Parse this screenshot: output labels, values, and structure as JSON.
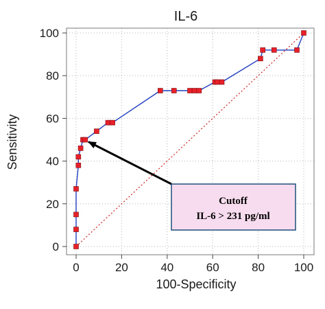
{
  "chart_data": {
    "type": "line",
    "title": "IL-6",
    "xlabel": "100-Specificity",
    "ylabel": "Sensitivity",
    "xlim": [
      0,
      100
    ],
    "ylim": [
      0,
      100
    ],
    "x_ticks": [
      "0",
      "20",
      "40",
      "60",
      "80",
      "100"
    ],
    "y_ticks": [
      "0",
      "20",
      "40",
      "60",
      "80",
      "100"
    ],
    "grid": true,
    "series": [
      {
        "color": "#1f3fbf",
        "marker_color": "#e8202a",
        "points": [
          [
            0,
            0
          ],
          [
            0,
            8
          ],
          [
            0,
            15
          ],
          [
            0,
            27
          ],
          [
            1,
            38
          ],
          [
            1,
            42
          ],
          [
            2,
            46
          ],
          [
            3,
            50
          ],
          [
            4,
            50
          ],
          [
            9,
            54
          ],
          [
            14,
            58
          ],
          [
            16,
            58
          ],
          [
            37,
            73
          ],
          [
            43,
            73
          ],
          [
            50,
            73
          ],
          [
            52,
            73
          ],
          [
            54,
            73
          ],
          [
            61,
            77
          ],
          [
            62,
            77
          ],
          [
            64,
            77
          ],
          [
            81,
            88
          ],
          [
            82,
            92
          ],
          [
            87,
            92
          ],
          [
            97,
            92
          ],
          [
            100,
            100
          ]
        ]
      }
    ],
    "reference_line": {
      "from": [
        0,
        0
      ],
      "to": [
        100,
        100
      ],
      "color": "#cc1f1f"
    },
    "annotation": {
      "lines": [
        "Cutoff",
        "IL-6 > 231 pg/ml"
      ],
      "box_fill": "#f7dbee",
      "box_border": "#1f4f7a",
      "arrow_target": [
        3,
        50
      ]
    }
  }
}
